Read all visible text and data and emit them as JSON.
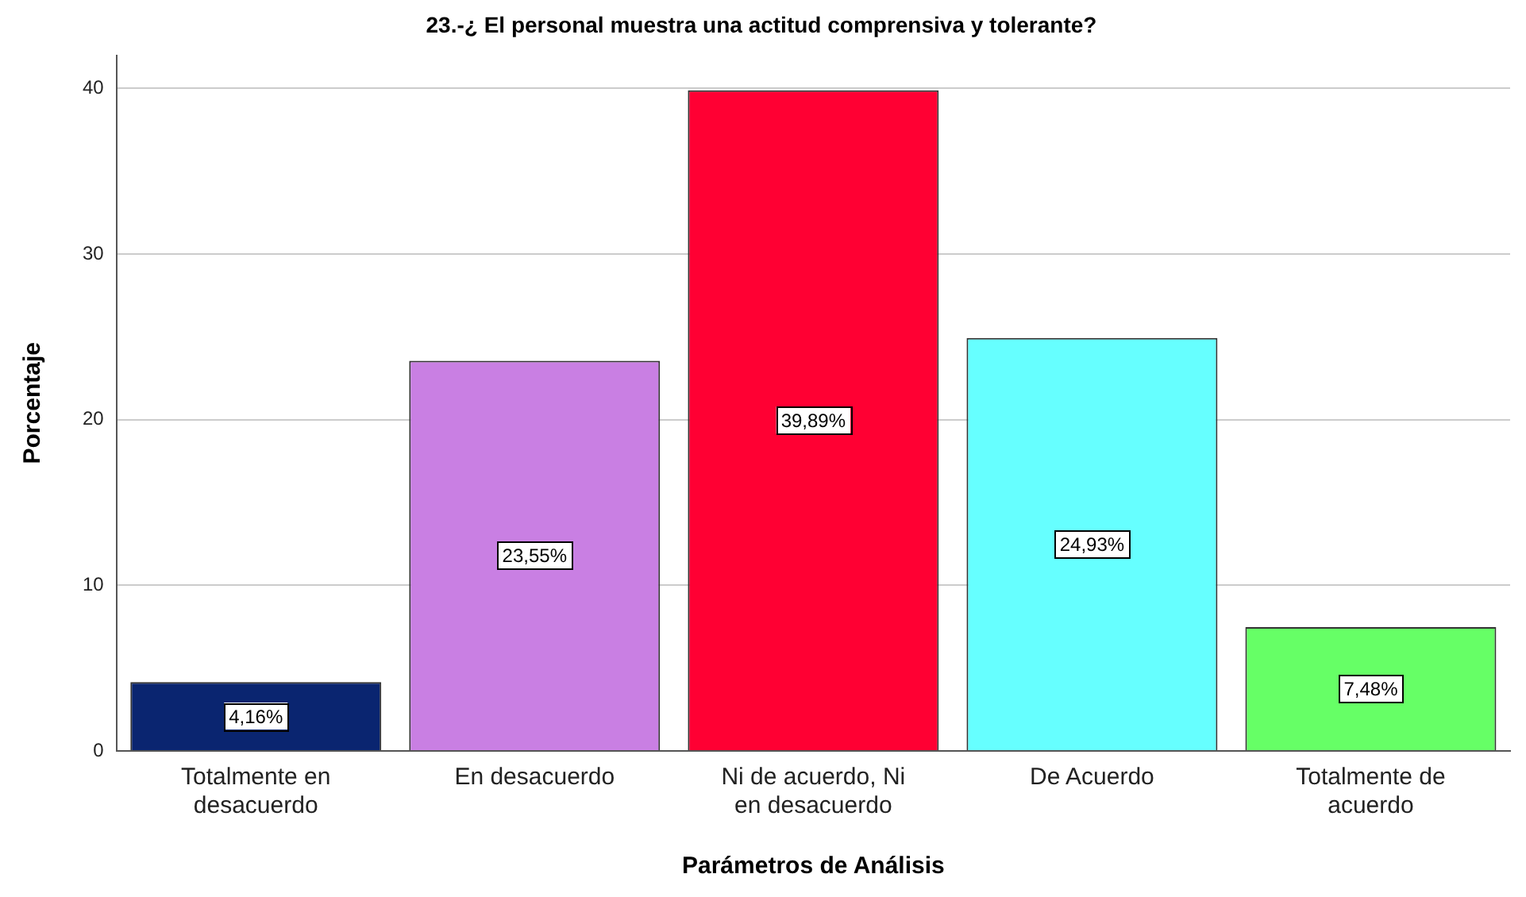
{
  "chart_data": {
    "type": "bar",
    "title": "23.-¿ El personal muestra una actitud comprensiva y tolerante?",
    "xlabel": "Parámetros de Análisis",
    "ylabel": "Porcentaje",
    "categories": [
      "Totalmente en desacuerdo",
      "En desacuerdo",
      "Ni de acuerdo, Ni en desacuerdo",
      "De Acuerdo",
      "Totalmente de acuerdo"
    ],
    "values": [
      4.16,
      23.55,
      39.89,
      24.93,
      7.48
    ],
    "colors": [
      "#0a2570",
      "#c97fe3",
      "#ff0033",
      "#66ffff",
      "#66ff66"
    ],
    "value_labels": [
      "4,16%",
      "23,55%",
      "39,89%",
      "24,93%",
      "7,48%"
    ],
    "ylim": [
      0,
      42
    ],
    "yticks": [
      0,
      10,
      20,
      30,
      40
    ],
    "grid": "y",
    "legend": false
  }
}
